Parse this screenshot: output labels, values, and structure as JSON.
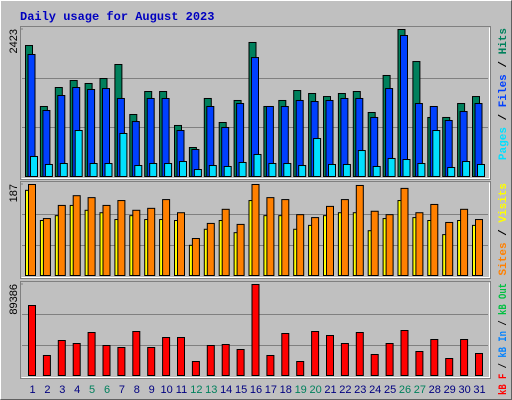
{
  "title": "Daily usage for August 2023",
  "chart_data": [
    {
      "type": "bar",
      "ylim": [
        0,
        2423
      ],
      "yticks": [
        2423
      ],
      "series": [
        {
          "name": "Hits",
          "color": "#00805c",
          "values": [
            2159,
            1154,
            1467,
            1582,
            1533,
            1615,
            1846,
            1022,
            1401,
            1401,
            841,
            478,
            1286,
            890,
            1253,
            2209,
            1154,
            1253,
            1417,
            1368,
            1318,
            1368,
            1401,
            1055,
            1665,
            2423,
            1895,
            973,
            973,
            1203,
            1318
          ]
        },
        {
          "name": "Files",
          "color": "#0040ff",
          "values": [
            2011,
            1088,
            1335,
            1467,
            1434,
            1450,
            1286,
            906,
            1286,
            1286,
            758,
            445,
            1154,
            808,
            1203,
            1961,
            1154,
            1154,
            1253,
            1236,
            1253,
            1286,
            1286,
            973,
            1450,
            2324,
            1203,
            1154,
            923,
            1071,
            1203
          ]
        },
        {
          "name": "Pages",
          "color": "#00e0ff",
          "values": [
            330,
            198,
            214,
            758,
            214,
            214,
            709,
            181,
            214,
            214,
            247,
            115,
            181,
            165,
            231,
            363,
            214,
            214,
            181,
            626,
            198,
            198,
            428,
            165,
            297,
            280,
            214,
            758,
            148,
            247,
            198
          ]
        }
      ]
    },
    {
      "type": "bar",
      "ylim": [
        0,
        187
      ],
      "yticks": [
        187
      ],
      "series": [
        {
          "name": "Visits",
          "color": "#ffff00",
          "values": [
            175,
            113,
            123,
            144,
            134,
            129,
            115,
            123,
            115,
            115,
            113,
            62,
            95,
            113,
            88,
            154,
            123,
            123,
            95,
            103,
            123,
            129,
            129,
            92,
            117,
            154,
            119,
            113,
            84,
            113,
            103
          ]
        },
        {
          "name": "Sites",
          "color": "#ff8000",
          "values": [
            187,
            117,
            144,
            164,
            160,
            144,
            154,
            134,
            138,
            156,
            129,
            76,
            107,
            136,
            105,
            187,
            160,
            156,
            125,
            119,
            142,
            156,
            185,
            132,
            125,
            179,
            129,
            146,
            109,
            136,
            115
          ]
        }
      ]
    },
    {
      "type": "bar",
      "ylim": [
        0,
        89386
      ],
      "yticks": [
        89386
      ],
      "series": [
        {
          "name": "kB F",
          "color": "#ff0000",
          "values": [
            68760,
            19650,
            34380,
            31430,
            42230,
            29470,
            27500,
            43220,
            27500,
            37320,
            37320,
            13750,
            29470,
            30440,
            25540,
            89386,
            19650,
            41250,
            13750,
            43220,
            39290,
            31430,
            42230,
            20630,
            31430,
            44200,
            23570,
            35360,
            16700,
            35360,
            21610
          ]
        }
      ],
      "extra_legend": [
        {
          "name": "kB In",
          "color": "#0080ff"
        },
        {
          "name": "kB Out",
          "color": "#00c040"
        }
      ],
      "categories": [
        "1",
        "2",
        "3",
        "4",
        "5",
        "6",
        "7",
        "8",
        "9",
        "10",
        "11",
        "12",
        "13",
        "14",
        "15",
        "16",
        "17",
        "18",
        "19",
        "20",
        "21",
        "22",
        "23",
        "24",
        "25",
        "26",
        "27",
        "28",
        "29",
        "30",
        "31"
      ],
      "category_colors": [
        "#000080",
        "#000080",
        "#000080",
        "#000080",
        "#00805c",
        "#00805c",
        "#000080",
        "#000080",
        "#000080",
        "#000080",
        "#000080",
        "#00805c",
        "#00805c",
        "#000080",
        "#000080",
        "#000080",
        "#000080",
        "#000080",
        "#00805c",
        "#00805c",
        "#000080",
        "#000080",
        "#000080",
        "#000080",
        "#000080",
        "#00805c",
        "#00805c",
        "#000080",
        "#000080",
        "#000080",
        "#000080"
      ]
    }
  ]
}
